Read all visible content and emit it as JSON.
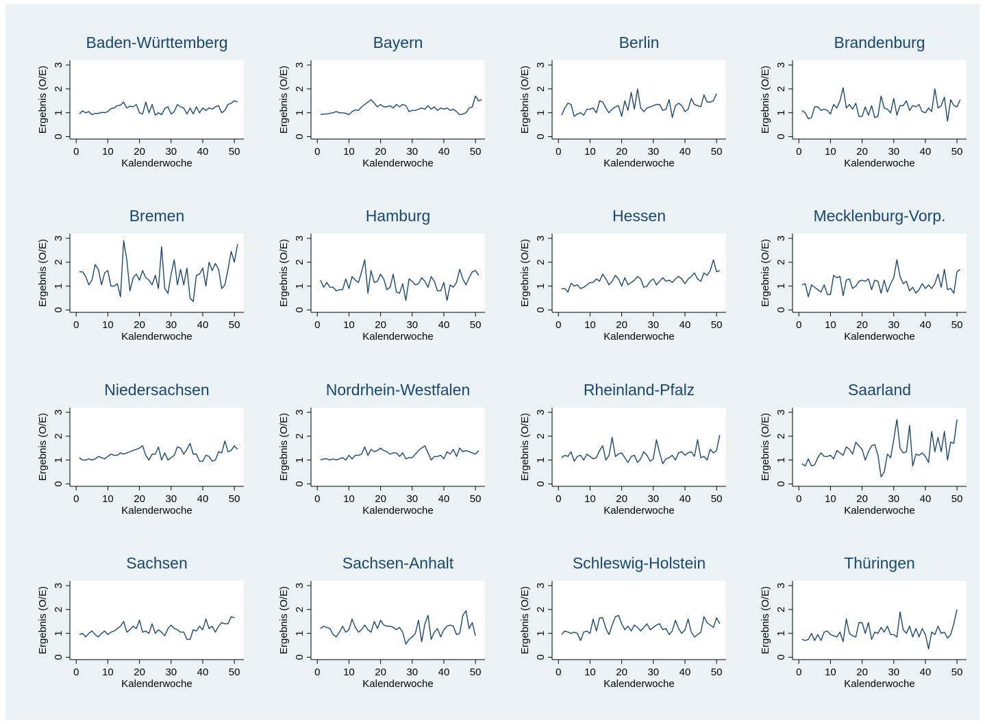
{
  "colors": {
    "background": "#eaf2f3",
    "plot": "#ffffff",
    "line": "#1a476f",
    "title": "#1a476f"
  },
  "chart_data": [
    {
      "type": "line",
      "title": "Baden-Württemberg",
      "xlabel": "Kalenderwoche",
      "ylabel": "Ergebnis (O/E)",
      "xticks": [
        0,
        10,
        20,
        30,
        40,
        50
      ],
      "yticks": [
        0,
        1,
        2,
        3
      ],
      "ylim": [
        -0.1,
        3.2
      ],
      "xlim": [
        -2,
        53
      ],
      "grid": false,
      "x_start": 1,
      "values": [
        0.95,
        1.08,
        1.0,
        1.05,
        0.92,
        0.98,
        0.97,
        1.02,
        1.0,
        1.05,
        1.18,
        1.2,
        1.3,
        1.32,
        1.45,
        1.2,
        1.28,
        1.25,
        1.35,
        1.0,
        0.95,
        1.45,
        1.0,
        1.35,
        0.9,
        1.0,
        0.92,
        1.18,
        1.25,
        0.95,
        1.05,
        1.35,
        1.25,
        1.2,
        0.95,
        1.2,
        0.95,
        1.25,
        1.0,
        1.2,
        1.1,
        1.2,
        1.15,
        1.25,
        1.3,
        1.0,
        1.1,
        1.35,
        1.4,
        1.5,
        1.45
      ]
    },
    {
      "type": "line",
      "title": "Bayern",
      "xlabel": "Kalenderwoche",
      "ylabel": "Ergebnis (O/E)",
      "xticks": [
        0,
        10,
        20,
        30,
        40,
        50
      ],
      "yticks": [
        0,
        1,
        2,
        3
      ],
      "ylim": [
        -0.1,
        3.2
      ],
      "xlim": [
        -2,
        53
      ],
      "grid": false,
      "x_start": 1,
      "values": [
        0.92,
        0.95,
        0.95,
        0.98,
        1.0,
        1.05,
        1.0,
        1.0,
        0.98,
        0.92,
        1.05,
        1.12,
        1.1,
        1.25,
        1.35,
        1.45,
        1.55,
        1.4,
        1.25,
        1.35,
        1.25,
        1.25,
        1.3,
        1.2,
        1.35,
        1.25,
        1.35,
        1.3,
        1.05,
        1.1,
        1.1,
        1.15,
        1.2,
        1.15,
        1.3,
        1.15,
        1.25,
        1.1,
        1.2,
        1.15,
        1.2,
        1.1,
        1.15,
        1.05,
        0.92,
        0.95,
        1.0,
        1.2,
        1.25,
        1.7,
        1.5,
        1.55
      ]
    },
    {
      "type": "line",
      "title": "Berlin",
      "xlabel": "Kalenderwoche",
      "ylabel": "Ergebnis (O/E)",
      "xticks": [
        0,
        10,
        20,
        30,
        40,
        50
      ],
      "yticks": [
        0,
        1,
        2,
        3
      ],
      "ylim": [
        -0.1,
        3.2
      ],
      "xlim": [
        -2,
        53
      ],
      "grid": false,
      "x_start": 1,
      "values": [
        0.9,
        1.2,
        1.4,
        1.35,
        0.85,
        0.95,
        1.0,
        0.9,
        1.15,
        1.15,
        1.2,
        1.0,
        1.5,
        1.45,
        1.2,
        1.0,
        1.15,
        1.25,
        1.3,
        0.85,
        1.5,
        1.1,
        1.85,
        1.15,
        2.0,
        1.2,
        1.05,
        1.2,
        1.25,
        1.3,
        1.35,
        1.35,
        1.1,
        1.15,
        1.55,
        0.8,
        1.3,
        1.4,
        1.3,
        1.05,
        1.15,
        1.6,
        1.35,
        1.3,
        1.25,
        1.75,
        1.45,
        1.45,
        1.5,
        1.8
      ]
    },
    {
      "type": "line",
      "title": "Brandenburg",
      "xlabel": "Kalenderwoche",
      "ylabel": "Ergebnis (O/E)",
      "xticks": [
        0,
        10,
        20,
        30,
        40,
        50
      ],
      "yticks": [
        0,
        1,
        2,
        3
      ],
      "ylim": [
        -0.1,
        3.2
      ],
      "xlim": [
        -2,
        53
      ],
      "grid": false,
      "x_start": 1,
      "values": [
        1.1,
        1.0,
        0.75,
        0.8,
        1.25,
        1.25,
        1.1,
        1.15,
        1.1,
        0.95,
        1.35,
        1.2,
        1.5,
        2.05,
        1.2,
        1.35,
        1.15,
        1.4,
        0.85,
        0.85,
        1.25,
        0.9,
        1.3,
        0.8,
        0.85,
        1.7,
        1.2,
        1.15,
        1.0,
        1.6,
        0.9,
        1.3,
        1.3,
        1.5,
        1.1,
        1.3,
        1.25,
        1.35,
        1.05,
        1.0,
        1.2,
        1.05,
        2.0,
        1.2,
        1.3,
        1.65,
        0.65,
        1.55,
        1.3,
        1.25,
        1.55
      ]
    },
    {
      "type": "line",
      "title": "Bremen",
      "xlabel": "Kalenderwoche",
      "ylabel": "Ergebnis (O/E)",
      "xticks": [
        0,
        10,
        20,
        30,
        40,
        50
      ],
      "yticks": [
        0,
        1,
        2,
        3
      ],
      "ylim": [
        -0.1,
        3.2
      ],
      "xlim": [
        -2,
        53
      ],
      "grid": false,
      "x_start": 1,
      "values": [
        1.6,
        1.6,
        1.4,
        1.05,
        1.25,
        1.9,
        1.7,
        1.05,
        1.55,
        1.65,
        1.0,
        1.0,
        1.1,
        0.55,
        2.9,
        2.1,
        0.8,
        1.35,
        1.5,
        1.25,
        1.65,
        1.35,
        1.25,
        1.05,
        1.45,
        0.9,
        2.65,
        0.9,
        0.7,
        1.5,
        2.1,
        1.05,
        1.7,
        1.05,
        1.75,
        0.5,
        0.35,
        1.45,
        1.5,
        1.75,
        1.0,
        2.0,
        1.65,
        1.95,
        1.7,
        0.9,
        1.05,
        1.7,
        2.45,
        2.0,
        2.75
      ]
    },
    {
      "type": "line",
      "title": "Hamburg",
      "xlabel": "Kalenderwoche",
      "ylabel": "Ergebnis (O/E)",
      "xticks": [
        0,
        10,
        20,
        30,
        40,
        50
      ],
      "yticks": [
        0,
        1,
        2,
        3
      ],
      "ylim": [
        -0.1,
        3.2
      ],
      "xlim": [
        -2,
        53
      ],
      "grid": false,
      "x_start": 1,
      "values": [
        1.25,
        0.95,
        1.15,
        0.95,
        0.95,
        0.8,
        0.85,
        0.85,
        1.3,
        0.9,
        1.4,
        1.25,
        1.15,
        1.6,
        2.1,
        0.7,
        1.65,
        1.15,
        1.2,
        1.5,
        1.3,
        0.85,
        0.95,
        1.5,
        0.75,
        0.7,
        1.1,
        0.4,
        1.3,
        1.2,
        1.05,
        1.1,
        1.35,
        1.2,
        0.95,
        1.4,
        1.2,
        0.8,
        0.8,
        1.15,
        0.4,
        1.05,
        0.95,
        1.15,
        1.7,
        1.3,
        1.05,
        1.35,
        1.6,
        1.65,
        1.45
      ]
    },
    {
      "type": "line",
      "title": "Hessen",
      "xlabel": "Kalenderwoche",
      "ylabel": "Ergebnis (O/E)",
      "xticks": [
        0,
        10,
        20,
        30,
        40,
        50
      ],
      "yticks": [
        0,
        1,
        2,
        3
      ],
      "ylim": [
        -0.1,
        3.2
      ],
      "xlim": [
        -2,
        53
      ],
      "grid": false,
      "x_start": 1,
      "values": [
        0.88,
        0.9,
        0.75,
        1.12,
        1.0,
        1.05,
        0.9,
        0.95,
        1.05,
        1.15,
        1.15,
        1.3,
        1.2,
        1.5,
        1.3,
        1.05,
        1.2,
        1.45,
        1.3,
        1.0,
        1.35,
        1.05,
        1.15,
        1.25,
        1.4,
        1.3,
        0.95,
        1.0,
        1.2,
        1.3,
        1.05,
        1.2,
        1.35,
        1.2,
        1.25,
        1.15,
        1.3,
        1.4,
        1.3,
        1.1,
        1.3,
        1.4,
        1.55,
        1.3,
        1.2,
        1.55,
        1.45,
        1.65,
        2.1,
        1.6,
        1.65
      ]
    },
    {
      "type": "line",
      "title": "Mecklenburg-Vorp.",
      "xlabel": "Kalenderwoche",
      "ylabel": "Ergebnis (O/E)",
      "xticks": [
        0,
        10,
        20,
        30,
        40,
        50
      ],
      "yticks": [
        0,
        1,
        2,
        3
      ],
      "ylim": [
        -0.1,
        3.2
      ],
      "xlim": [
        -2,
        53
      ],
      "grid": false,
      "x_start": 1,
      "values": [
        1.05,
        1.1,
        0.55,
        1.05,
        0.95,
        0.85,
        0.75,
        1.05,
        0.65,
        0.65,
        1.45,
        1.35,
        1.4,
        0.6,
        1.25,
        1.3,
        0.9,
        1.0,
        1.2,
        1.25,
        1.2,
        1.3,
        0.85,
        1.25,
        1.2,
        0.7,
        1.25,
        0.75,
        1.1,
        1.35,
        2.1,
        1.4,
        1.1,
        1.2,
        0.8,
        0.95,
        0.7,
        0.85,
        1.1,
        0.9,
        1.05,
        0.9,
        1.1,
        1.5,
        0.95,
        1.7,
        0.85,
        0.9,
        0.7,
        1.6,
        1.7
      ]
    },
    {
      "type": "line",
      "title": "Niedersachsen",
      "xlabel": "Kalenderwoche",
      "ylabel": "Ergebnis (O/E)",
      "xticks": [
        0,
        10,
        20,
        30,
        40,
        50
      ],
      "yticks": [
        0,
        1,
        2,
        3
      ],
      "ylim": [
        -0.1,
        3.2
      ],
      "xlim": [
        -2,
        53
      ],
      "grid": false,
      "x_start": 1,
      "values": [
        1.1,
        1.0,
        1.0,
        1.05,
        1.0,
        1.05,
        1.15,
        1.1,
        1.05,
        1.15,
        1.25,
        1.2,
        1.2,
        1.3,
        1.25,
        1.3,
        1.35,
        1.4,
        1.45,
        1.5,
        1.6,
        1.2,
        1.0,
        1.25,
        1.25,
        1.55,
        1.0,
        1.3,
        1.0,
        1.1,
        1.2,
        1.55,
        1.5,
        1.25,
        1.45,
        1.7,
        1.25,
        1.25,
        0.95,
        0.95,
        1.2,
        1.15,
        0.95,
        1.0,
        1.35,
        1.3,
        1.8,
        1.35,
        1.4,
        1.6,
        1.45
      ]
    },
    {
      "type": "line",
      "title": "Nordrhein-Westfalen",
      "xlabel": "Kalenderwoche",
      "ylabel": "Ergebnis (O/E)",
      "xticks": [
        0,
        10,
        20,
        30,
        40,
        50
      ],
      "yticks": [
        0,
        1,
        2,
        3
      ],
      "ylim": [
        -0.1,
        3.2
      ],
      "xlim": [
        -2,
        53
      ],
      "grid": false,
      "x_start": 1,
      "values": [
        1.0,
        1.05,
        1.05,
        1.0,
        1.05,
        1.0,
        1.05,
        1.1,
        1.0,
        1.2,
        1.05,
        1.2,
        1.2,
        1.25,
        1.55,
        1.2,
        1.45,
        1.35,
        1.4,
        1.5,
        1.4,
        1.35,
        1.25,
        1.3,
        1.3,
        1.15,
        1.3,
        1.05,
        1.1,
        1.1,
        1.25,
        1.4,
        1.5,
        1.6,
        1.3,
        1.0,
        1.15,
        1.15,
        1.2,
        1.05,
        1.35,
        1.25,
        1.45,
        1.15,
        1.5,
        1.35,
        1.4,
        1.35,
        1.3,
        1.25,
        1.4
      ]
    },
    {
      "type": "line",
      "title": "Rheinland-Pfalz",
      "xlabel": "Kalenderwoche",
      "ylabel": "Ergebnis (O/E)",
      "xticks": [
        0,
        10,
        20,
        30,
        40,
        50
      ],
      "yticks": [
        0,
        1,
        2,
        3
      ],
      "ylim": [
        -0.1,
        3.2
      ],
      "xlim": [
        -2,
        53
      ],
      "grid": false,
      "x_start": 1,
      "values": [
        1.1,
        1.2,
        1.15,
        1.35,
        0.95,
        1.15,
        1.2,
        1.0,
        1.25,
        1.15,
        1.05,
        1.1,
        1.4,
        1.6,
        1.0,
        1.2,
        1.95,
        1.15,
        1.25,
        1.3,
        1.1,
        0.9,
        1.15,
        1.2,
        0.9,
        1.05,
        1.35,
        1.2,
        0.95,
        1.05,
        1.85,
        1.3,
        0.85,
        1.05,
        1.1,
        1.2,
        1.0,
        1.3,
        1.35,
        1.2,
        1.3,
        1.35,
        1.15,
        1.85,
        1.1,
        1.15,
        1.0,
        1.45,
        1.3,
        1.4,
        2.05
      ]
    },
    {
      "type": "line",
      "title": "Saarland",
      "xlabel": "Kalenderwoche",
      "ylabel": "Ergebnis (O/E)",
      "xticks": [
        0,
        10,
        20,
        30,
        40,
        50
      ],
      "yticks": [
        0,
        1,
        2,
        3
      ],
      "ylim": [
        -0.1,
        3.2
      ],
      "xlim": [
        -2,
        53
      ],
      "grid": false,
      "x_start": 1,
      "values": [
        0.85,
        0.75,
        1.05,
        0.75,
        0.8,
        1.1,
        1.3,
        1.15,
        1.15,
        1.2,
        1.05,
        1.4,
        1.3,
        1.2,
        1.55,
        1.45,
        1.25,
        1.75,
        1.6,
        1.45,
        1.0,
        1.35,
        1.6,
        1.65,
        1.2,
        0.3,
        0.5,
        1.25,
        1.1,
        1.85,
        2.7,
        1.5,
        1.3,
        1.35,
        2.45,
        0.75,
        1.25,
        1.2,
        1.3,
        1.15,
        0.9,
        2.2,
        1.35,
        1.95,
        1.35,
        2.2,
        1.0,
        1.75,
        1.7,
        2.7
      ]
    },
    {
      "type": "line",
      "title": "Sachsen",
      "xlabel": "Kalenderwoche",
      "ylabel": "Ergebnis (O/E)",
      "xticks": [
        0,
        10,
        20,
        30,
        40,
        50
      ],
      "yticks": [
        0,
        1,
        2,
        3
      ],
      "ylim": [
        -0.1,
        3.2
      ],
      "xlim": [
        -2,
        53
      ],
      "grid": false,
      "x_start": 1,
      "values": [
        0.95,
        1.0,
        0.85,
        1.0,
        1.1,
        0.95,
        0.85,
        1.0,
        1.1,
        0.95,
        1.05,
        1.1,
        1.2,
        1.3,
        1.5,
        1.05,
        1.15,
        1.3,
        1.2,
        1.55,
        1.05,
        1.1,
        1.0,
        1.4,
        1.0,
        1.15,
        1.05,
        0.9,
        1.2,
        1.35,
        1.2,
        1.15,
        1.05,
        1.05,
        0.75,
        0.75,
        1.15,
        1.1,
        1.3,
        1.15,
        1.6,
        1.2,
        1.3,
        1.05,
        1.3,
        1.45,
        1.4,
        1.4,
        1.7,
        1.65
      ]
    },
    {
      "type": "line",
      "title": "Sachsen-Anhalt",
      "xlabel": "Kalenderwoche",
      "ylabel": "Ergebnis (O/E)",
      "xticks": [
        0,
        10,
        20,
        30,
        40,
        50
      ],
      "yticks": [
        0,
        1,
        2,
        3
      ],
      "ylim": [
        -0.1,
        3.2
      ],
      "xlim": [
        -2,
        53
      ],
      "grid": false,
      "x_start": 1,
      "values": [
        1.2,
        1.3,
        1.25,
        1.2,
        0.95,
        0.85,
        1.05,
        1.3,
        1.05,
        1.15,
        1.6,
        1.25,
        1.05,
        1.15,
        1.35,
        1.15,
        1.05,
        1.5,
        1.2,
        1.55,
        1.35,
        1.3,
        1.3,
        1.25,
        1.15,
        1.25,
        1.05,
        0.55,
        0.75,
        0.85,
        1.0,
        1.55,
        0.65,
        1.4,
        1.75,
        0.75,
        1.05,
        1.2,
        0.85,
        1.15,
        1.3,
        1.35,
        1.3,
        0.95,
        1.0,
        1.75,
        1.95,
        1.2,
        1.45,
        0.9
      ]
    },
    {
      "type": "line",
      "title": "Schleswig-Holstein",
      "xlabel": "Kalenderwoche",
      "ylabel": "Ergebnis (O/E)",
      "xticks": [
        0,
        10,
        20,
        30,
        40,
        50
      ],
      "yticks": [
        0,
        1,
        2,
        3
      ],
      "ylim": [
        -0.1,
        3.2
      ],
      "xlim": [
        -2,
        53
      ],
      "grid": false,
      "x_start": 1,
      "values": [
        0.95,
        1.1,
        1.05,
        1.0,
        1.05,
        1.0,
        0.7,
        1.05,
        1.1,
        1.0,
        1.6,
        1.1,
        1.65,
        1.65,
        1.2,
        0.95,
        1.35,
        1.7,
        1.75,
        1.4,
        1.15,
        1.3,
        1.1,
        1.35,
        1.25,
        1.1,
        1.25,
        1.4,
        1.15,
        1.25,
        1.35,
        1.4,
        1.15,
        1.2,
        0.95,
        1.1,
        1.55,
        1.2,
        1.0,
        1.15,
        1.6,
        1.05,
        0.85,
        0.95,
        1.05,
        1.7,
        1.45,
        1.35,
        1.25,
        1.65,
        1.4
      ]
    },
    {
      "type": "line",
      "title": "Thüringen",
      "xlabel": "Kalenderwoche",
      "ylabel": "Ergebnis (O/E)",
      "xticks": [
        0,
        10,
        20,
        30,
        40,
        50
      ],
      "yticks": [
        0,
        1,
        2,
        3
      ],
      "ylim": [
        -0.1,
        3.2
      ],
      "xlim": [
        -2,
        53
      ],
      "grid": false,
      "x_start": 1,
      "values": [
        0.75,
        0.7,
        0.75,
        1.0,
        0.7,
        0.95,
        0.7,
        1.05,
        1.1,
        0.95,
        0.9,
        0.85,
        1.05,
        0.65,
        1.6,
        1.0,
        0.9,
        0.85,
        1.45,
        1.45,
        1.0,
        1.45,
        0.75,
        1.05,
        1.0,
        1.25,
        1.05,
        1.3,
        0.95,
        0.95,
        0.85,
        1.9,
        1.15,
        1.0,
        1.3,
        0.85,
        1.2,
        0.85,
        1.2,
        0.95,
        0.35,
        1.05,
        0.95,
        1.3,
        1.0,
        1.05,
        0.8,
        0.95,
        1.4,
        2.0
      ]
    }
  ]
}
